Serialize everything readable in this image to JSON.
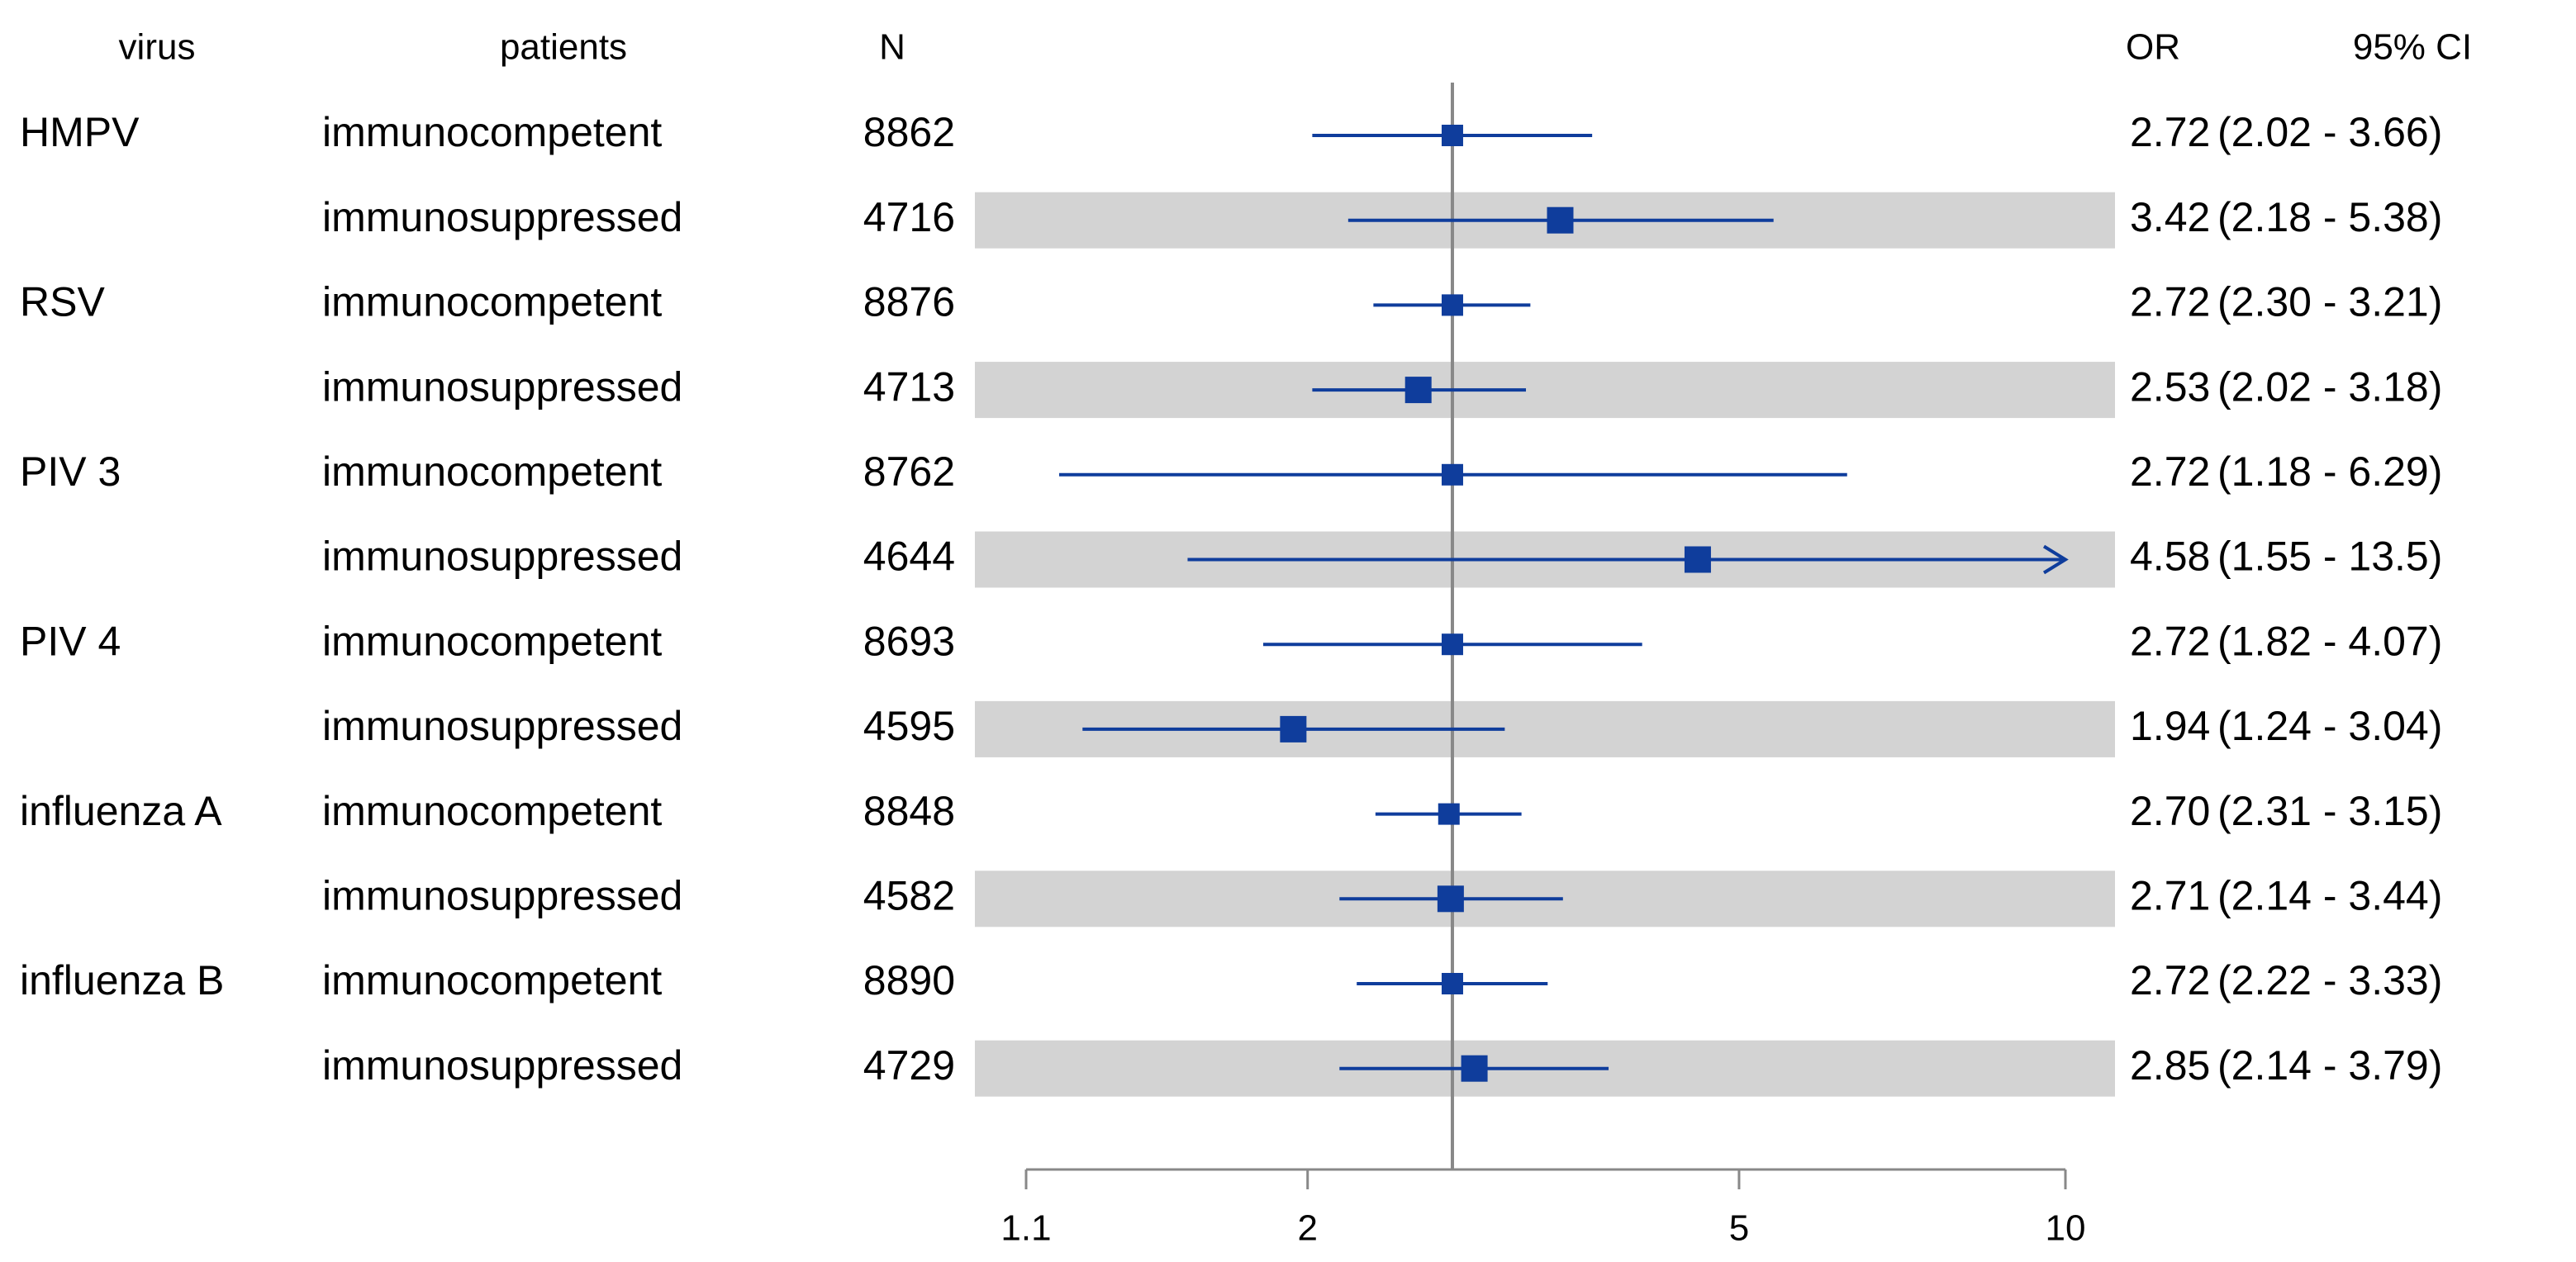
{
  "chart_data": {
    "type": "forest",
    "headers": {
      "virus": "virus",
      "patients": "patients",
      "n": "N",
      "or": "OR",
      "ci": "95% CI"
    },
    "groups": [
      "HMPV",
      "RSV",
      "PIV 3",
      "PIV 4",
      "influenza A",
      "influenza B"
    ],
    "patients": [
      "immunocompetent",
      "immunosuppressed",
      "immunocompetent",
      "immunosuppressed",
      "immunocompetent",
      "immunosuppressed",
      "immunocompetent",
      "immunosuppressed",
      "immunocompetent",
      "immunosuppressed",
      "immunocompetent",
      "immunosuppressed"
    ],
    "n": [
      8862,
      4716,
      8876,
      4713,
      8762,
      4644,
      8693,
      4595,
      8848,
      4582,
      8890,
      4729
    ],
    "values": [
      2.72,
      3.42,
      2.72,
      2.53,
      2.72,
      4.58,
      2.72,
      1.94,
      2.7,
      2.71,
      2.72,
      2.85
    ],
    "value_labels": [
      "2.72",
      "3.42",
      "2.72",
      "2.53",
      "2.72",
      "4.58",
      "2.72",
      "1.94",
      "2.70",
      "2.71",
      "2.72",
      "2.85"
    ],
    "lower": [
      2.02,
      2.18,
      2.3,
      2.02,
      1.18,
      1.55,
      1.82,
      1.24,
      2.31,
      2.14,
      2.22,
      2.14
    ],
    "upper": [
      3.66,
      5.38,
      3.21,
      3.18,
      6.29,
      13.5,
      4.07,
      3.04,
      3.15,
      3.44,
      3.33,
      3.79
    ],
    "ci_labels": [
      "(2.02 - 3.66)",
      "(2.18 - 5.38)",
      "(2.30 - 3.21)",
      "(2.02 - 3.18)",
      "(1.18 - 6.29)",
      "(1.55 - 13.5)",
      "(1.82 - 4.07)",
      "(1.24 - 3.04)",
      "(2.31 - 3.15)",
      "(2.14 - 3.44)",
      "(2.22 - 3.33)",
      "(2.14 - 3.79)"
    ],
    "xlim": [
      1.1,
      10
    ],
    "xticks": [
      1.1,
      2,
      5,
      10
    ],
    "log_x": true,
    "reference_line": 2.72,
    "color": "#0f3d9c",
    "shade_color": "#d3d3d3"
  }
}
